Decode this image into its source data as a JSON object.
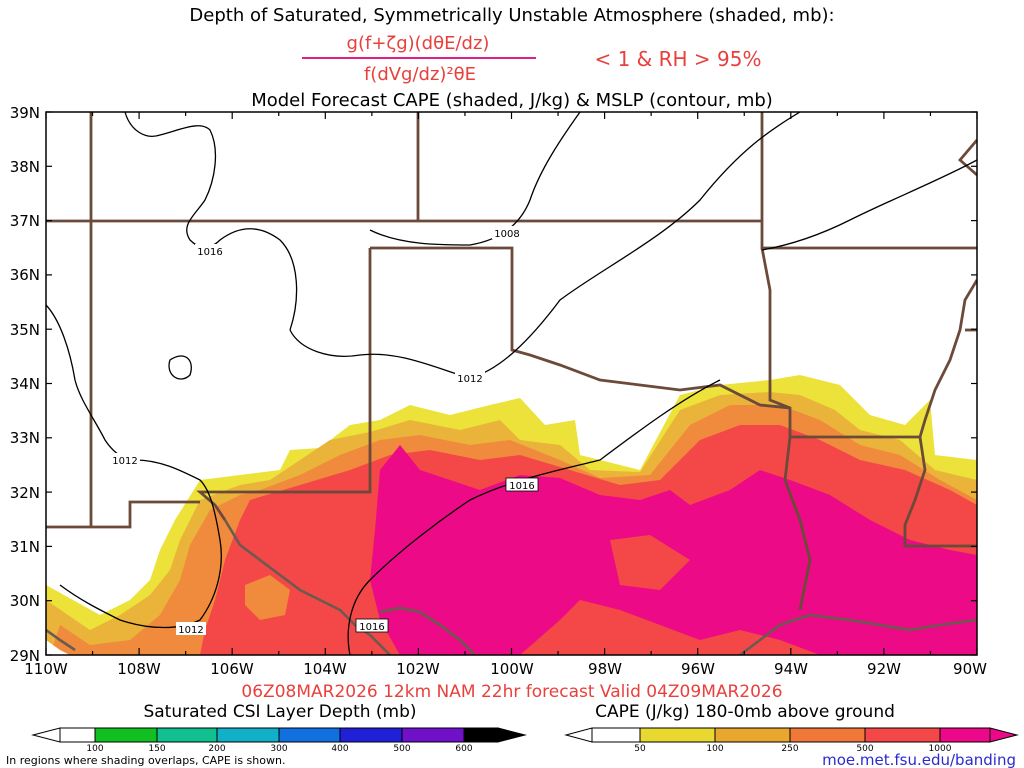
{
  "title": {
    "line1": "Depth of Saturated, Symmetrically Unstable Atmosphere (shaded, mb):",
    "frac_num": "g(f+ζg)(dθE/dz)",
    "frac_den": "f(dVg/dz)²θE",
    "criterion": "< 1 & RH > 95%",
    "line3": "Model Forecast CAPE (shaded, J/kg) & MSLP (contour, mb)"
  },
  "axes": {
    "lat_labels": [
      "39N",
      "38N",
      "37N",
      "36N",
      "35N",
      "34N",
      "33N",
      "32N",
      "31N",
      "30N",
      "29N"
    ],
    "lon_labels": [
      "110W",
      "108W",
      "106W",
      "104W",
      "102W",
      "100W",
      "98W",
      "96W",
      "94W",
      "92W",
      "90W"
    ],
    "lat_range": [
      29,
      39
    ],
    "lon_range": [
      -110,
      -90
    ]
  },
  "isobars": [
    "1016",
    "1008",
    "1012",
    "1012",
    "1016",
    "1012",
    "1016"
  ],
  "valid_line": "06Z08MAR2026 12km NAM 22hr forecast Valid 04Z09MAR2026",
  "legend_csi": {
    "title": "Saturated CSI Layer Depth (mb)",
    "ticks": [
      "100",
      "150",
      "200",
      "300",
      "400",
      "500",
      "600"
    ],
    "colors": [
      "#ffffff",
      "#10c020",
      "#10c090",
      "#10b0c8",
      "#1070e0",
      "#2020d8",
      "#7010c8",
      "#000000"
    ]
  },
  "legend_cape": {
    "title": "CAPE (J/kg) 180-0mb above ground",
    "ticks": [
      "50",
      "100",
      "250",
      "500",
      "1000"
    ],
    "colors": [
      "#ffffff",
      "#e8d830",
      "#e8a830",
      "#f07838",
      "#f44848",
      "#ec0888"
    ]
  },
  "footnote": "In regions where shading overlaps, CAPE is shown.",
  "source_link": "moe.met.fsu.edu/banding",
  "colors": {
    "cape_50": "#ece23a",
    "cape_100": "#eab43a",
    "cape_250": "#f08a3c",
    "cape_500": "#f44848",
    "cape_1000": "#ec0a86",
    "border": "#6b4a3a",
    "title_accent": "#e8403c"
  }
}
